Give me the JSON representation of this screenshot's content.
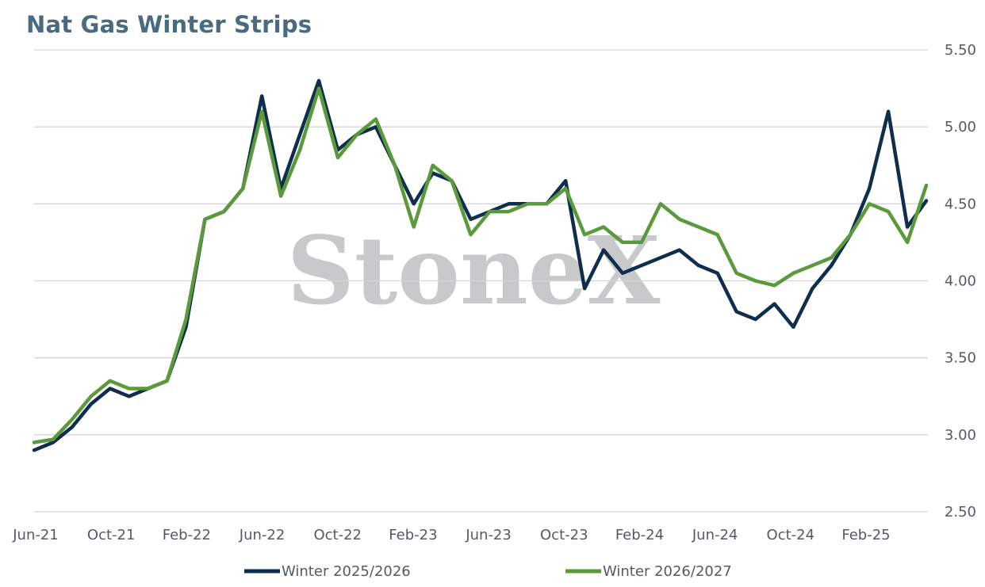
{
  "chart_data": {
    "type": "line",
    "title": "Nat Gas Winter Strips",
    "watermark": "StoneX",
    "xlabel": "",
    "ylabel": "",
    "ylim": [
      2.5,
      5.5
    ],
    "yticks": [
      "2.50",
      "3.00",
      "3.50",
      "4.00",
      "4.50",
      "5.00",
      "5.50"
    ],
    "xticks": [
      "Jun-21",
      "Oct-21",
      "Feb-22",
      "Jun-22",
      "Oct-22",
      "Feb-23",
      "Jun-23",
      "Oct-23",
      "Feb-24",
      "Jun-24",
      "Oct-24",
      "Feb-25"
    ],
    "grid": "horizontal",
    "legend_position": "bottom",
    "series": [
      {
        "name": "Winter 2025/2026",
        "color": "#0f2d4d",
        "x": [
          "Jun-21",
          "Jul-21",
          "Aug-21",
          "Sep-21",
          "Oct-21",
          "Nov-21",
          "Dec-21",
          "Jan-22",
          "Feb-22",
          "Mar-22",
          "Apr-22",
          "May-22",
          "Jun-22",
          "Jul-22",
          "Aug-22",
          "Sep-22",
          "Oct-22",
          "Nov-22",
          "Dec-22",
          "Jan-23",
          "Feb-23",
          "Mar-23",
          "Apr-23",
          "May-23",
          "Jun-23",
          "Jul-23",
          "Aug-23",
          "Sep-23",
          "Oct-23",
          "Nov-23",
          "Dec-23",
          "Jan-24",
          "Feb-24",
          "Mar-24",
          "Apr-24",
          "May-24",
          "Jun-24",
          "Jul-24",
          "Aug-24",
          "Sep-24",
          "Oct-24",
          "Nov-24",
          "Dec-24",
          "Jan-25",
          "Feb-25",
          "Mar-25",
          "Apr-25",
          "May-25"
        ],
        "values": [
          2.9,
          2.95,
          3.05,
          3.2,
          3.3,
          3.25,
          3.3,
          3.35,
          3.7,
          4.4,
          4.45,
          4.6,
          5.2,
          4.6,
          4.95,
          5.3,
          4.85,
          4.95,
          5.0,
          4.75,
          4.5,
          4.7,
          4.65,
          4.4,
          4.45,
          4.5,
          4.5,
          4.5,
          4.65,
          3.95,
          4.2,
          4.05,
          4.1,
          4.15,
          4.2,
          4.1,
          4.05,
          3.8,
          3.75,
          3.85,
          3.7,
          3.95,
          4.1,
          4.3,
          4.6,
          5.1,
          4.35,
          4.52
        ]
      },
      {
        "name": "Winter 2026/2027",
        "color": "#5a9a3c",
        "x": [
          "Jun-21",
          "Jul-21",
          "Aug-21",
          "Sep-21",
          "Oct-21",
          "Nov-21",
          "Dec-21",
          "Jan-22",
          "Feb-22",
          "Mar-22",
          "Apr-22",
          "May-22",
          "Jun-22",
          "Jul-22",
          "Aug-22",
          "Sep-22",
          "Oct-22",
          "Nov-22",
          "Dec-22",
          "Jan-23",
          "Feb-23",
          "Mar-23",
          "Apr-23",
          "May-23",
          "Jun-23",
          "Jul-23",
          "Aug-23",
          "Sep-23",
          "Oct-23",
          "Nov-23",
          "Dec-23",
          "Jan-24",
          "Feb-24",
          "Mar-24",
          "Apr-24",
          "May-24",
          "Jun-24",
          "Jul-24",
          "Aug-24",
          "Sep-24",
          "Oct-24",
          "Nov-24",
          "Dec-24",
          "Jan-25",
          "Feb-25",
          "Mar-25",
          "Apr-25",
          "May-25"
        ],
        "values": [
          2.95,
          2.97,
          3.1,
          3.25,
          3.35,
          3.3,
          3.3,
          3.35,
          3.75,
          4.4,
          4.45,
          4.6,
          5.1,
          4.55,
          4.85,
          5.25,
          4.8,
          4.95,
          5.05,
          4.75,
          4.35,
          4.75,
          4.65,
          4.3,
          4.45,
          4.45,
          4.5,
          4.5,
          4.6,
          4.3,
          4.35,
          4.25,
          4.25,
          4.5,
          4.4,
          4.35,
          4.3,
          4.05,
          4.0,
          3.97,
          4.05,
          4.1,
          4.15,
          4.3,
          4.5,
          4.45,
          4.25,
          4.62
        ]
      }
    ]
  }
}
